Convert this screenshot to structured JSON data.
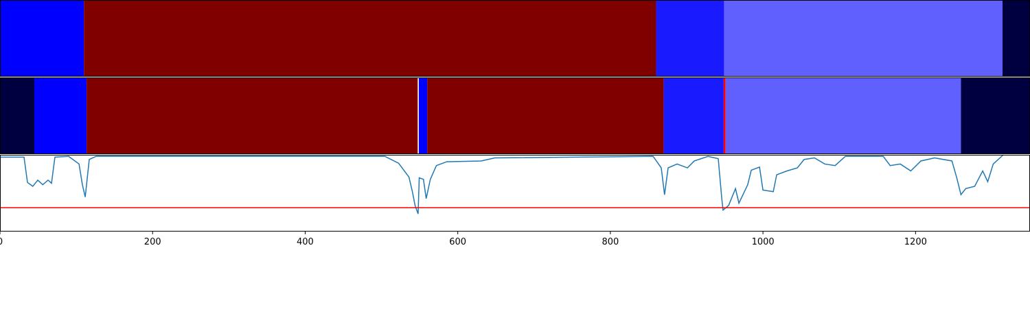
{
  "chart_data": [
    {
      "type": "segments",
      "xlim": [
        0,
        1350
      ],
      "segments": [
        {
          "start": 0,
          "end": 110,
          "color": "#0000ff"
        },
        {
          "start": 110,
          "end": 860,
          "color": "#800000"
        },
        {
          "start": 860,
          "end": 949,
          "color": "#1a1aff"
        },
        {
          "start": 949,
          "end": 1314,
          "color": "#6060ff"
        },
        {
          "start": 1314,
          "end": 1350,
          "color": "#000040"
        }
      ]
    },
    {
      "type": "segments",
      "xlim": [
        0,
        1350
      ],
      "segments": [
        {
          "start": 0,
          "end": 45,
          "color": "#000040"
        },
        {
          "start": 45,
          "end": 113.5,
          "color": "#0000ff"
        },
        {
          "start": 113.5,
          "end": 547.5,
          "color": "#800000"
        },
        {
          "start": 547.5,
          "end": 549,
          "color": "#ffe0e0"
        },
        {
          "start": 549,
          "end": 560,
          "color": "#0000ff"
        },
        {
          "start": 560,
          "end": 870,
          "color": "#800000"
        },
        {
          "start": 870,
          "end": 948.5,
          "color": "#1a1aff"
        },
        {
          "start": 948.5,
          "end": 951,
          "color": "#ff0000"
        },
        {
          "start": 951,
          "end": 1259.5,
          "color": "#6060ff"
        },
        {
          "start": 1259.5,
          "end": 1350,
          "color": "#000040"
        }
      ]
    },
    {
      "type": "line",
      "xlim": [
        0,
        1350
      ],
      "ylim": [
        0,
        1
      ],
      "color": "#1f77b4",
      "threshold": 0.31,
      "threshold_color": "#ff0000",
      "xticks": [
        0,
        200,
        400,
        600,
        800,
        1000,
        1200
      ],
      "x": [
        0,
        31.5,
        36,
        43,
        49.5,
        56,
        63,
        67.5,
        72,
        90,
        103.6,
        108,
        111.7,
        117,
        126,
        504.5,
        522.5,
        536,
        540.5,
        544,
        548,
        549.5,
        555,
        558.6,
        564,
        572,
        585.6,
        630.6,
        648.6,
        856,
        866.7,
        871,
        875.7,
        887.4,
        901,
        910,
        928,
        941.4,
        946,
        947.7,
        955,
        964,
        968.5,
        980,
        984.7,
        995.5,
        1000,
        1013.5,
        1018,
        1031.5,
        1045,
        1054,
        1067.6,
        1081,
        1094.6,
        1108,
        1157.7,
        1166.7,
        1180,
        1193.7,
        1207,
        1225,
        1247.7,
        1254,
        1259.5,
        1265.8,
        1277.5,
        1288,
        1294.6,
        1301.8,
        1315
      ],
      "values": [
        0.97,
        0.97,
        0.64,
        0.59,
        0.67,
        0.61,
        0.67,
        0.63,
        0.97,
        0.98,
        0.88,
        0.61,
        0.45,
        0.94,
        0.98,
        0.98,
        0.89,
        0.71,
        0.52,
        0.34,
        0.23,
        0.7,
        0.68,
        0.43,
        0.68,
        0.86,
        0.91,
        0.92,
        0.96,
        0.98,
        0.83,
        0.48,
        0.83,
        0.88,
        0.83,
        0.92,
        0.98,
        0.95,
        0.43,
        0.28,
        0.34,
        0.56,
        0.37,
        0.61,
        0.8,
        0.84,
        0.54,
        0.52,
        0.74,
        0.79,
        0.83,
        0.94,
        0.96,
        0.88,
        0.86,
        0.98,
        0.98,
        0.86,
        0.88,
        0.79,
        0.92,
        0.96,
        0.92,
        0.7,
        0.48,
        0.56,
        0.59,
        0.79,
        0.65,
        0.88,
        1.0
      ]
    }
  ]
}
